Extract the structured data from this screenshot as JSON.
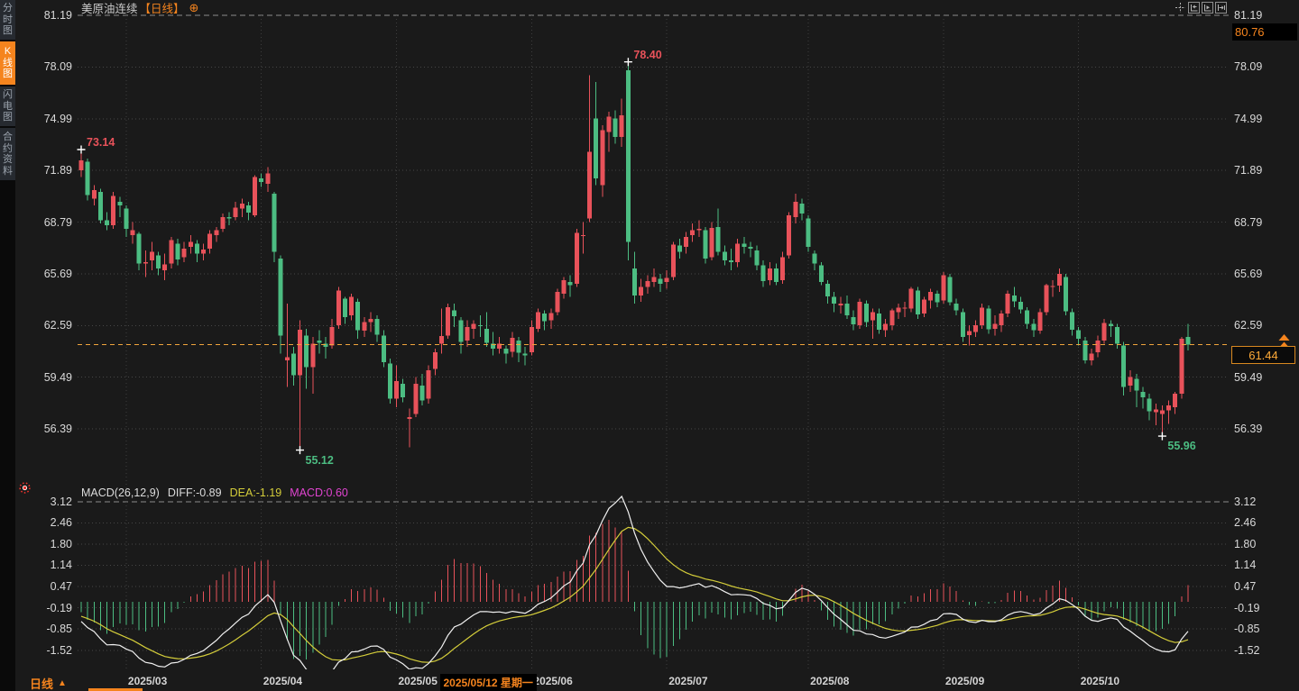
{
  "colors": {
    "background": "#1a1a1a",
    "accent_orange": "#f5841e",
    "up_red": "#e8525a",
    "down_green": "#4cbd82",
    "diff_white": "#f0f0f0",
    "dea_yellow": "#d4cd3a",
    "macd_magenta": "#e044d0",
    "price_line_orange": "#f0a43c",
    "axis_text": "#d9d9d9",
    "grid_dotted": "#464646",
    "grid_dashed": "#8c8c8c"
  },
  "sidebar": {
    "items": [
      {
        "label": "分时图",
        "active": false
      },
      {
        "label": "K线图",
        "active": true
      },
      {
        "label": "闪电图",
        "active": false
      },
      {
        "label": "合约资料",
        "active": false
      }
    ]
  },
  "header": {
    "symbol": "美原油连续",
    "period_tag": "【日线】",
    "add_icon": "⊕",
    "toolbar_icons": [
      "crosshair",
      "pan-left",
      "play-forward",
      "jump-to-latest"
    ]
  },
  "indicator_header": {
    "name": "MACD(26,12,9)",
    "diff": "DIFF:-0.89",
    "dea": "DEA:-1.19",
    "macd": "MACD:0.60"
  },
  "bottom_bar": {
    "period_label": "日线",
    "arrow": "▲"
  },
  "chart_data": {
    "type": "candlestick",
    "symbol": "美原油连续",
    "period": "日线",
    "price_axis_labels": [
      "81.19",
      "78.09",
      "74.99",
      "71.89",
      "68.79",
      "65.69",
      "62.59",
      "59.49",
      "56.39"
    ],
    "macd_axis_labels": [
      "3.12",
      "2.46",
      "1.80",
      "1.14",
      "0.47",
      "-0.19",
      "-0.85",
      "-1.52"
    ],
    "x_axis": [
      {
        "label": "2025/03",
        "index": 7
      },
      {
        "label": "2025/04",
        "index": 28
      },
      {
        "label": "2025/05",
        "index": 49
      },
      {
        "label": "2025/06",
        "index": 70
      },
      {
        "label": "2025/07",
        "index": 91
      },
      {
        "label": "2025/08",
        "index": 113
      },
      {
        "label": "2025/09",
        "index": 134
      },
      {
        "label": "2025/10",
        "index": 155
      }
    ],
    "highlighted_date": {
      "label": "2025/05/12 星期一",
      "index": 56
    },
    "annotations": [
      {
        "text": "73.14",
        "price": 73.14,
        "index": 0,
        "type": "high",
        "color": "up"
      },
      {
        "text": "78.40",
        "price": 78.4,
        "index": 85,
        "type": "high",
        "color": "up"
      },
      {
        "text": "55.12",
        "price": 55.12,
        "index": 34,
        "type": "low",
        "color": "down"
      },
      {
        "text": "55.96",
        "price": 55.96,
        "index": 168,
        "type": "low",
        "color": "down"
      }
    ],
    "last_price": "61.44",
    "upper_right_price": "80.76",
    "macd_summary": {
      "diff": -0.89,
      "dea": -1.19,
      "macd": 0.6
    },
    "candles": [
      [
        71.9,
        73.14,
        71.5,
        72.5
      ],
      [
        72.4,
        72.6,
        70.1,
        70.4
      ],
      [
        70.2,
        71,
        69.8,
        70.7
      ],
      [
        70.6,
        70.8,
        68.7,
        68.9
      ],
      [
        68.9,
        69.4,
        68.3,
        68.6
      ],
      [
        68.6,
        70.6,
        68.4,
        70.35
      ],
      [
        70,
        70.3,
        69.1,
        69.8
      ],
      [
        69.6,
        69.8,
        67.9,
        68.4
      ],
      [
        68,
        68.8,
        67.5,
        68.3
      ],
      [
        68.1,
        68.2,
        65.9,
        66.3
      ],
      [
        66.3,
        67.1,
        65.5,
        66.4
      ],
      [
        66.5,
        67.6,
        65.9,
        67
      ],
      [
        66.8,
        67,
        65.6,
        66
      ],
      [
        65.9,
        66.9,
        65.3,
        66.25
      ],
      [
        66.3,
        67.9,
        66,
        67.7
      ],
      [
        67.5,
        67.8,
        66.2,
        66.55
      ],
      [
        66.7,
        67.6,
        66.4,
        67.2
      ],
      [
        67.3,
        68,
        66.9,
        67.6
      ],
      [
        67.5,
        67.7,
        66.4,
        66.9
      ],
      [
        66.9,
        67.5,
        66.5,
        67.15
      ],
      [
        67.2,
        68.3,
        66.9,
        68.1
      ],
      [
        68,
        68.5,
        67.6,
        68.3
      ],
      [
        68.4,
        69.3,
        68.2,
        69.1
      ],
      [
        69.1,
        69.4,
        68.6,
        69
      ],
      [
        69.1,
        70,
        68.9,
        69.65
      ],
      [
        69.6,
        70.2,
        69.1,
        69.9
      ],
      [
        69.8,
        70,
        68.9,
        69.35
      ],
      [
        69.2,
        71.6,
        69.1,
        71.5
      ],
      [
        71.4,
        71.7,
        70.9,
        71.2
      ],
      [
        71.1,
        72.1,
        70.6,
        71.7
      ],
      [
        70.5,
        70.6,
        66.4,
        67
      ],
      [
        66.6,
        66.8,
        60.9,
        62
      ],
      [
        60.5,
        63.9,
        58.9,
        60.7
      ],
      [
        60.9,
        61.3,
        59,
        59.6
      ],
      [
        59.6,
        62.9,
        55.12,
        62.35
      ],
      [
        62,
        62.4,
        58.8,
        60.1
      ],
      [
        60.1,
        61.9,
        58.5,
        61.5
      ],
      [
        61.7,
        62.3,
        60.9,
        61.55
      ],
      [
        61.5,
        61.9,
        60.6,
        61.3
      ],
      [
        61.4,
        63,
        61.2,
        62.5
      ],
      [
        62.6,
        64.9,
        62.4,
        64.7
      ],
      [
        64.2,
        64.3,
        62.7,
        63.1
      ],
      [
        63.2,
        64.5,
        62.9,
        64.3
      ],
      [
        64,
        64.2,
        61.8,
        62.3
      ],
      [
        62.3,
        63.1,
        61.9,
        62.8
      ],
      [
        62.8,
        63.4,
        62.2,
        63
      ],
      [
        63,
        63.2,
        61.6,
        62.05
      ],
      [
        62,
        62.3,
        60.1,
        60.4
      ],
      [
        60.3,
        60.6,
        57.9,
        58.2
      ],
      [
        58.2,
        60.2,
        57.7,
        59.25
      ],
      [
        59.1,
        59.4,
        58,
        58.3
      ],
      [
        57,
        57.6,
        55.3,
        57.1
      ],
      [
        57.3,
        59.5,
        57.1,
        59.1
      ],
      [
        59,
        59.7,
        57.8,
        58.1
      ],
      [
        58.2,
        60.2,
        57.9,
        59.9
      ],
      [
        60,
        61.2,
        59.6,
        61
      ],
      [
        61.5,
        63.6,
        60.9,
        61.95
      ],
      [
        62,
        63.9,
        61.8,
        63.7
      ],
      [
        63.5,
        63.9,
        62.5,
        63.15
      ],
      [
        62.9,
        63.1,
        60.9,
        61.6
      ],
      [
        61.7,
        62.9,
        61.3,
        62.5
      ],
      [
        62.4,
        62.9,
        61.8,
        62.7
      ],
      [
        62.6,
        63.2,
        61.9,
        62.55
      ],
      [
        62.4,
        63.4,
        61.3,
        61.55
      ],
      [
        61.5,
        62.2,
        60.8,
        61.2
      ],
      [
        61.2,
        61.9,
        60.9,
        61.5
      ],
      [
        61.2,
        61.4,
        60.3,
        60.9
      ],
      [
        61,
        62.2,
        60.7,
        61.85
      ],
      [
        61.7,
        61.9,
        60.4,
        60.95
      ],
      [
        60.9,
        61.3,
        60.2,
        60.8
      ],
      [
        61,
        62.9,
        60.8,
        62.5
      ],
      [
        62.4,
        63.6,
        62.2,
        63.4
      ],
      [
        63.3,
        63.5,
        62.3,
        62.85
      ],
      [
        62.9,
        63.6,
        62.4,
        63.35
      ],
      [
        63.4,
        64.8,
        63.2,
        64.6
      ],
      [
        64.5,
        65.5,
        64.2,
        65.3
      ],
      [
        65.2,
        65.6,
        64.3,
        65
      ],
      [
        65.1,
        68.4,
        64.9,
        68.15
      ],
      [
        68,
        68.8,
        66.9,
        68
      ],
      [
        69,
        77.6,
        68.8,
        73
      ],
      [
        75,
        77.2,
        71,
        71.4
      ],
      [
        71,
        74.6,
        70.3,
        74.3
      ],
      [
        74.2,
        75.4,
        73,
        75.1
      ],
      [
        75,
        75.5,
        73.5,
        73.9
      ],
      [
        73.9,
        76.2,
        73.3,
        75.2
      ],
      [
        77.9,
        78.4,
        66.5,
        67.6
      ],
      [
        66,
        67,
        63.9,
        64.4
      ],
      [
        64.4,
        65.4,
        64,
        64.9
      ],
      [
        64.9,
        65.6,
        64.5,
        65.25
      ],
      [
        65.2,
        66,
        64.9,
        65.5
      ],
      [
        65.4,
        65.7,
        64.6,
        65.1
      ],
      [
        65.2,
        65.9,
        64.8,
        65.45
      ],
      [
        65.5,
        67.6,
        65.3,
        67.45
      ],
      [
        67.4,
        67.8,
        66.6,
        67
      ],
      [
        67.3,
        68.2,
        66.9,
        67.9
      ],
      [
        68,
        68.7,
        67.6,
        68.3
      ],
      [
        68.3,
        68.9,
        67.9,
        68.4
      ],
      [
        68.3,
        68.5,
        66.3,
        66.6
      ],
      [
        66.7,
        68.8,
        66.5,
        68.45
      ],
      [
        68.5,
        69.6,
        66.8,
        67
      ],
      [
        67,
        67.4,
        66.2,
        66.5
      ],
      [
        66.5,
        67.2,
        65.9,
        66.4
      ],
      [
        66.4,
        67.8,
        66.1,
        67.5
      ],
      [
        67.5,
        67.9,
        66.9,
        67.3
      ],
      [
        67.3,
        67.6,
        66.7,
        67.2
      ],
      [
        67.1,
        67.4,
        65.9,
        66.2
      ],
      [
        66.2,
        66.5,
        64.9,
        65.25
      ],
      [
        65.3,
        66.4,
        65,
        66
      ],
      [
        66,
        66.3,
        65,
        65.2
      ],
      [
        65.3,
        67,
        65.1,
        66.7
      ],
      [
        66.8,
        69.4,
        66.6,
        69.2
      ],
      [
        69.1,
        70.5,
        68.7,
        70
      ],
      [
        69.9,
        70.2,
        68.9,
        69.3
      ],
      [
        69,
        69.2,
        67,
        67.3
      ],
      [
        66.9,
        67.1,
        65.9,
        66.3
      ],
      [
        66.2,
        66.4,
        65,
        65.2
      ],
      [
        65.1,
        65.3,
        63.9,
        64.35
      ],
      [
        64.3,
        64.6,
        63.4,
        63.9
      ],
      [
        63.8,
        64.3,
        63.3,
        63.9
      ],
      [
        63.9,
        64.4,
        63,
        63.2
      ],
      [
        63.1,
        63.5,
        62.3,
        62.65
      ],
      [
        62.6,
        64.2,
        62.4,
        64
      ],
      [
        63.9,
        64.1,
        62.5,
        62.8
      ],
      [
        62.9,
        63.6,
        61.8,
        63.4
      ],
      [
        63.3,
        63.6,
        62.1,
        62.35
      ],
      [
        62.3,
        63,
        61.9,
        62.7
      ],
      [
        62.6,
        63.6,
        62.3,
        63.5
      ],
      [
        63.4,
        63.9,
        63,
        63.65
      ],
      [
        63.6,
        64,
        63.1,
        63.66
      ],
      [
        63.6,
        64.9,
        63.4,
        64.8
      ],
      [
        64.7,
        64.9,
        63,
        63.25
      ],
      [
        63.3,
        64.3,
        63.1,
        64.15
      ],
      [
        64.1,
        64.8,
        63.6,
        64.6
      ],
      [
        64.5,
        64.7,
        63.7,
        64
      ],
      [
        64.1,
        65.8,
        63.9,
        65.6
      ],
      [
        65.5,
        65.7,
        63.8,
        64
      ],
      [
        63.9,
        64.2,
        63.2,
        63.5
      ],
      [
        63.4,
        63.6,
        61.6,
        61.9
      ],
      [
        62,
        62.6,
        61.4,
        62.25
      ],
      [
        62.2,
        62.9,
        61.9,
        62.6
      ],
      [
        62.6,
        63.9,
        62.4,
        63.65
      ],
      [
        63.6,
        63.8,
        62.1,
        62.35
      ],
      [
        62.4,
        63.2,
        62,
        62.7
      ],
      [
        62.6,
        63.5,
        62.2,
        63.3
      ],
      [
        63.3,
        64.7,
        63.1,
        64.5
      ],
      [
        64.4,
        64.9,
        63.7,
        64.05
      ],
      [
        64,
        64.3,
        63.3,
        63.55
      ],
      [
        63.5,
        63.7,
        62.4,
        62.7
      ],
      [
        62.7,
        63,
        61.9,
        62.3
      ],
      [
        62.3,
        63.6,
        62.1,
        63.4
      ],
      [
        63.4,
        65.1,
        63.2,
        65
      ],
      [
        64.9,
        65.3,
        64.3,
        64.95
      ],
      [
        65,
        66,
        64.6,
        65.7
      ],
      [
        65.5,
        65.7,
        63.2,
        63.45
      ],
      [
        63.4,
        63.6,
        62,
        62.35
      ],
      [
        62.3,
        62.5,
        61.4,
        61.8
      ],
      [
        61.7,
        61.9,
        60.3,
        60.5
      ],
      [
        60.5,
        61.2,
        60.2,
        60.9
      ],
      [
        61,
        62,
        60.7,
        61.7
      ],
      [
        61.7,
        63,
        61.5,
        62.75
      ],
      [
        62.7,
        62.9,
        61.9,
        62.55
      ],
      [
        62.5,
        62.7,
        61.2,
        61.5
      ],
      [
        61.4,
        61.6,
        58.4,
        58.9
      ],
      [
        59,
        59.9,
        58.6,
        59.5
      ],
      [
        59.4,
        59.7,
        57.7,
        58.7
      ],
      [
        58.6,
        58.9,
        57.6,
        58.3
      ],
      [
        58.2,
        58.5,
        56.9,
        57.45
      ],
      [
        57.4,
        57.9,
        56.6,
        57.55
      ],
      [
        57.3,
        57.8,
        55.96,
        57.5
      ],
      [
        57.5,
        58.1,
        56.7,
        57.8
      ],
      [
        57.7,
        58.6,
        57.3,
        58.5
      ],
      [
        58.5,
        61.9,
        58.2,
        61.8
      ],
      [
        61.9,
        62.7,
        61.1,
        61.44
      ]
    ]
  }
}
